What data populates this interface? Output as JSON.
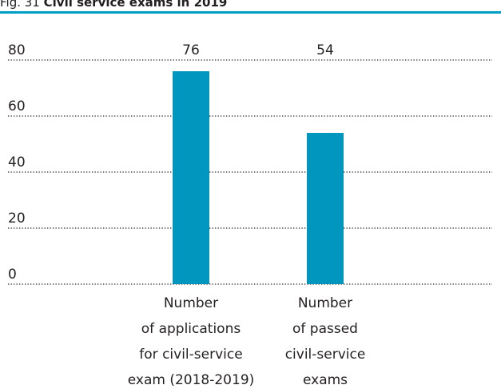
{
  "title": {
    "prefix": "Fig. 31",
    "main": "Civil service exams in 2019"
  },
  "chart_data": {
    "type": "bar",
    "categories": [
      [
        "Number",
        "of applications",
        "for civil-service",
        "exam (2018-2019)"
      ],
      [
        "Number",
        "of passed",
        "civil-service",
        "exams"
      ]
    ],
    "values": [
      76,
      54
    ],
    "value_labels": [
      "76",
      "54"
    ],
    "ylim": [
      0,
      80
    ],
    "yticks": [
      "0",
      "20",
      "40",
      "60",
      "80"
    ],
    "grid": true,
    "grid_style": "dotted",
    "bar_color": "#0096bd",
    "text_color": "#231f20"
  }
}
